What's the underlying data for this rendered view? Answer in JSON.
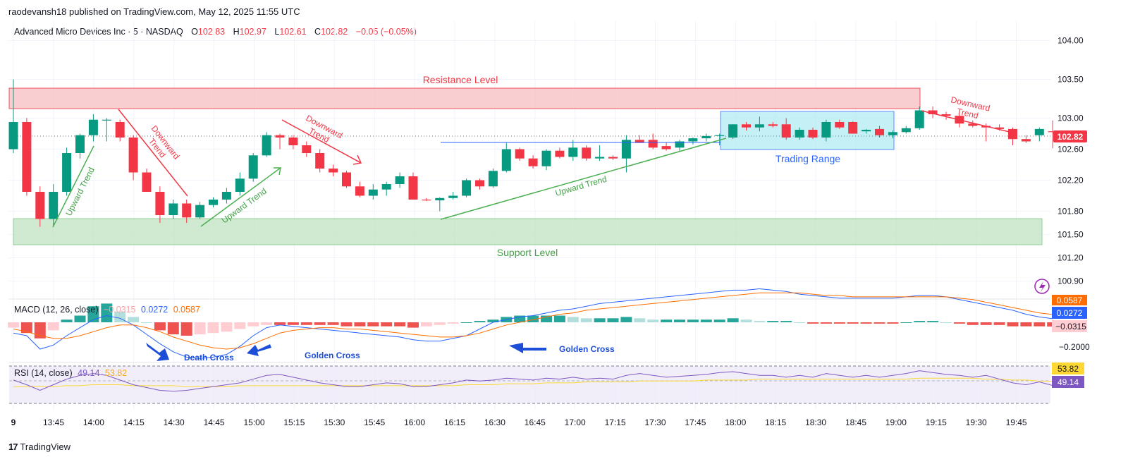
{
  "header": {
    "publisher": "raodevansh18 published on TradingView.com, May 12, 2025 11:55 UTC",
    "symbol": "Advanced Micro Devices Inc · 5 · NASDAQ",
    "o_label": "O",
    "o_value": "102.83",
    "h_label": "H",
    "h_value": "102.97",
    "l_label": "L",
    "l_value": "102.61",
    "c_label": "C",
    "c_value": "102.82",
    "change": "−0.05 (−0.05%)"
  },
  "price_axis": {
    "ticks": [
      "104.00",
      "103.50",
      "103.00",
      "102.60",
      "102.20",
      "101.80",
      "101.50",
      "101.20",
      "100.90"
    ],
    "last_price": "102.82"
  },
  "time_axis": {
    "ticks": [
      "9",
      "13:45",
      "14:00",
      "14:15",
      "14:30",
      "14:45",
      "15:00",
      "15:15",
      "15:30",
      "15:45",
      "16:00",
      "16:15",
      "16:30",
      "16:45",
      "17:00",
      "17:15",
      "17:30",
      "17:45",
      "18:00",
      "18:15",
      "18:30",
      "18:45",
      "19:00",
      "19:15",
      "19:30",
      "19:45"
    ]
  },
  "annotations": {
    "resistance": "Resistance Level",
    "support": "Support Level",
    "trading_range": "Trading Range",
    "upward_trend": "Upward Trend",
    "downward_trend": "Downward Trend",
    "death_cross": "Death Cross",
    "golden_cross": "Golden Cross"
  },
  "macd": {
    "label": "MACD (12, 26, close)",
    "hist_value": "−0.0315",
    "macd_value": "0.0272",
    "signal_value": "0.0587",
    "axis_tick": "−0.2000",
    "colors": {
      "macd": "#2962ff",
      "signal": "#ff6d00",
      "hist_pos": "#26a69a",
      "hist_neg": "#ef5350"
    }
  },
  "rsi": {
    "label": "RSI (14, close)",
    "rsi_value": "49.14",
    "ma_value": "53.82",
    "colors": {
      "rsi": "#7e57c2",
      "ma": "#fdd835"
    }
  },
  "footer": {
    "brand": "TradingView"
  },
  "chart_data": {
    "type": "candlestick",
    "interval": "5",
    "y_axis_range": [
      100.75,
      104.25
    ],
    "colors": {
      "up": "#089981",
      "down": "#f23645"
    },
    "candles": [
      {
        "o": 102.6,
        "h": 103.5,
        "l": 102.55,
        "c": 102.95
      },
      {
        "o": 102.95,
        "h": 103.0,
        "l": 102.0,
        "c": 102.05
      },
      {
        "o": 102.05,
        "h": 102.12,
        "l": 101.6,
        "c": 101.7
      },
      {
        "o": 101.7,
        "h": 102.15,
        "l": 101.62,
        "c": 102.05
      },
      {
        "o": 102.05,
        "h": 102.62,
        "l": 102.0,
        "c": 102.55
      },
      {
        "o": 102.55,
        "h": 102.8,
        "l": 102.48,
        "c": 102.78
      },
      {
        "o": 102.78,
        "h": 103.05,
        "l": 102.7,
        "c": 102.98
      },
      {
        "o": 102.98,
        "h": 103.0,
        "l": 102.7,
        "c": 102.98
      },
      {
        "o": 102.95,
        "h": 102.98,
        "l": 102.7,
        "c": 102.75
      },
      {
        "o": 102.75,
        "h": 102.78,
        "l": 102.2,
        "c": 102.3
      },
      {
        "o": 102.3,
        "h": 102.35,
        "l": 102.05,
        "c": 102.05
      },
      {
        "o": 102.05,
        "h": 102.12,
        "l": 101.65,
        "c": 101.75
      },
      {
        "o": 101.75,
        "h": 101.95,
        "l": 101.7,
        "c": 101.9
      },
      {
        "o": 101.9,
        "h": 101.95,
        "l": 101.65,
        "c": 101.72
      },
      {
        "o": 101.72,
        "h": 101.92,
        "l": 101.7,
        "c": 101.88
      },
      {
        "o": 101.88,
        "h": 101.98,
        "l": 101.85,
        "c": 101.95
      },
      {
        "o": 101.95,
        "h": 102.1,
        "l": 101.9,
        "c": 102.05
      },
      {
        "o": 102.05,
        "h": 102.3,
        "l": 102.0,
        "c": 102.22
      },
      {
        "o": 102.22,
        "h": 102.55,
        "l": 102.18,
        "c": 102.52
      },
      {
        "o": 102.52,
        "h": 102.82,
        "l": 102.5,
        "c": 102.78
      },
      {
        "o": 102.78,
        "h": 102.8,
        "l": 102.6,
        "c": 102.75
      },
      {
        "o": 102.75,
        "h": 102.78,
        "l": 102.6,
        "c": 102.65
      },
      {
        "o": 102.65,
        "h": 102.7,
        "l": 102.5,
        "c": 102.55
      },
      {
        "o": 102.55,
        "h": 102.6,
        "l": 102.3,
        "c": 102.35
      },
      {
        "o": 102.35,
        "h": 102.4,
        "l": 102.25,
        "c": 102.3
      },
      {
        "o": 102.3,
        "h": 102.32,
        "l": 102.1,
        "c": 102.12
      },
      {
        "o": 102.12,
        "h": 102.18,
        "l": 101.98,
        "c": 102.0
      },
      {
        "o": 102.0,
        "h": 102.15,
        "l": 101.95,
        "c": 102.08
      },
      {
        "o": 102.08,
        "h": 102.18,
        "l": 102.0,
        "c": 102.15
      },
      {
        "o": 102.15,
        "h": 102.3,
        "l": 102.1,
        "c": 102.25
      },
      {
        "o": 102.25,
        "h": 102.3,
        "l": 101.95,
        "c": 101.95
      },
      {
        "o": 101.95,
        "h": 101.97,
        "l": 101.93,
        "c": 101.94
      },
      {
        "o": 101.94,
        "h": 101.98,
        "l": 101.8,
        "c": 101.97
      },
      {
        "o": 101.97,
        "h": 102.05,
        "l": 101.95,
        "c": 102.0
      },
      {
        "o": 102.0,
        "h": 102.22,
        "l": 101.98,
        "c": 102.2
      },
      {
        "o": 102.2,
        "h": 102.22,
        "l": 102.08,
        "c": 102.12
      },
      {
        "o": 102.12,
        "h": 102.35,
        "l": 102.1,
        "c": 102.32
      },
      {
        "o": 102.32,
        "h": 102.68,
        "l": 102.3,
        "c": 102.6
      },
      {
        "o": 102.6,
        "h": 102.62,
        "l": 102.45,
        "c": 102.48
      },
      {
        "o": 102.48,
        "h": 102.52,
        "l": 102.35,
        "c": 102.38
      },
      {
        "o": 102.38,
        "h": 102.6,
        "l": 102.33,
        "c": 102.58
      },
      {
        "o": 102.58,
        "h": 102.62,
        "l": 102.48,
        "c": 102.5
      },
      {
        "o": 102.5,
        "h": 102.72,
        "l": 102.45,
        "c": 102.62
      },
      {
        "o": 102.62,
        "h": 102.65,
        "l": 102.45,
        "c": 102.48
      },
      {
        "o": 102.48,
        "h": 102.65,
        "l": 102.45,
        "c": 102.5
      },
      {
        "o": 102.5,
        "h": 102.52,
        "l": 102.46,
        "c": 102.48
      },
      {
        "o": 102.48,
        "h": 102.78,
        "l": 102.3,
        "c": 102.72
      },
      {
        "o": 102.72,
        "h": 102.78,
        "l": 102.68,
        "c": 102.68
      },
      {
        "o": 102.72,
        "h": 102.8,
        "l": 102.6,
        "c": 102.62
      },
      {
        "o": 102.64,
        "h": 102.68,
        "l": 102.58,
        "c": 102.6
      },
      {
        "o": 102.62,
        "h": 102.72,
        "l": 102.58,
        "c": 102.7
      },
      {
        "o": 102.7,
        "h": 102.75,
        "l": 102.66,
        "c": 102.74
      },
      {
        "o": 102.74,
        "h": 102.8,
        "l": 102.7,
        "c": 102.77
      },
      {
        "o": 102.77,
        "h": 102.8,
        "l": 102.65,
        "c": 102.78
      },
      {
        "o": 102.75,
        "h": 102.92,
        "l": 102.73,
        "c": 102.92
      },
      {
        "o": 102.92,
        "h": 102.95,
        "l": 102.84,
        "c": 102.88
      },
      {
        "o": 102.88,
        "h": 103.02,
        "l": 102.83,
        "c": 102.92
      },
      {
        "o": 102.92,
        "h": 102.95,
        "l": 102.88,
        "c": 102.9
      },
      {
        "o": 102.92,
        "h": 103.0,
        "l": 102.72,
        "c": 102.75
      },
      {
        "o": 102.75,
        "h": 102.88,
        "l": 102.72,
        "c": 102.85
      },
      {
        "o": 102.85,
        "h": 102.88,
        "l": 102.73,
        "c": 102.75
      },
      {
        "o": 102.75,
        "h": 102.98,
        "l": 102.7,
        "c": 102.95
      },
      {
        "o": 102.95,
        "h": 102.98,
        "l": 102.86,
        "c": 102.88
      },
      {
        "o": 102.95,
        "h": 102.96,
        "l": 102.8,
        "c": 102.8
      },
      {
        "o": 102.83,
        "h": 102.86,
        "l": 102.8,
        "c": 102.85
      },
      {
        "o": 102.86,
        "h": 102.9,
        "l": 102.75,
        "c": 102.78
      },
      {
        "o": 102.78,
        "h": 102.84,
        "l": 102.74,
        "c": 102.82
      },
      {
        "o": 102.82,
        "h": 102.9,
        "l": 102.8,
        "c": 102.87
      },
      {
        "o": 102.87,
        "h": 103.15,
        "l": 102.85,
        "c": 103.1
      },
      {
        "o": 103.1,
        "h": 103.15,
        "l": 103.0,
        "c": 103.05
      },
      {
        "o": 103.05,
        "h": 103.08,
        "l": 102.98,
        "c": 103.03
      },
      {
        "o": 103.03,
        "h": 103.05,
        "l": 102.88,
        "c": 102.93
      },
      {
        "o": 102.93,
        "h": 102.97,
        "l": 102.88,
        "c": 102.9
      },
      {
        "o": 102.9,
        "h": 102.93,
        "l": 102.7,
        "c": 102.88
      },
      {
        "o": 102.88,
        "h": 102.92,
        "l": 102.84,
        "c": 102.86
      },
      {
        "o": 102.86,
        "h": 102.88,
        "l": 102.65,
        "c": 102.73
      },
      {
        "o": 102.73,
        "h": 102.78,
        "l": 102.68,
        "c": 102.7
      },
      {
        "o": 102.78,
        "h": 102.88,
        "l": 102.7,
        "c": 102.86
      },
      {
        "o": 102.83,
        "h": 102.97,
        "l": 102.61,
        "c": 102.82
      }
    ],
    "macd_histogram": [
      -0.04,
      -0.08,
      -0.12,
      -0.06,
      0.02,
      0.05,
      0.12,
      0.14,
      0.08,
      0.04,
      0.0,
      -0.06,
      -0.09,
      -0.1,
      -0.09,
      -0.08,
      -0.07,
      -0.05,
      -0.03,
      -0.02,
      -0.02,
      -0.02,
      -0.02,
      -0.02,
      -0.02,
      -0.03,
      -0.03,
      -0.03,
      -0.03,
      -0.03,
      -0.04,
      -0.03,
      -0.02,
      -0.01,
      0.0,
      0.01,
      0.02,
      0.04,
      0.05,
      0.05,
      0.05,
      0.05,
      0.04,
      0.03,
      0.03,
      0.03,
      0.04,
      0.03,
      0.02,
      0.02,
      0.02,
      0.02,
      0.02,
      0.02,
      0.03,
      0.02,
      0.01,
      0.01,
      0.01,
      0.0,
      -0.01,
      -0.01,
      -0.01,
      -0.01,
      -0.01,
      -0.01,
      -0.01,
      0.0,
      0.01,
      0.01,
      0.0,
      -0.01,
      -0.02,
      -0.02,
      -0.02,
      -0.03,
      -0.03,
      -0.03,
      -0.0315
    ],
    "macd_line": [
      -0.08,
      -0.1,
      -0.2,
      -0.17,
      -0.1,
      -0.04,
      0.02,
      0.05,
      0.03,
      -0.02,
      -0.09,
      -0.16,
      -0.22,
      -0.26,
      -0.27,
      -0.26,
      -0.24,
      -0.18,
      -0.1,
      -0.04,
      -0.02,
      -0.03,
      -0.04,
      -0.05,
      -0.06,
      -0.07,
      -0.08,
      -0.09,
      -0.1,
      -0.11,
      -0.13,
      -0.14,
      -0.14,
      -0.12,
      -0.1,
      -0.05,
      0.0,
      0.02,
      0.04,
      0.05,
      0.07,
      0.09,
      0.1,
      0.12,
      0.14,
      0.15,
      0.16,
      0.17,
      0.18,
      0.19,
      0.2,
      0.21,
      0.22,
      0.23,
      0.24,
      0.24,
      0.25,
      0.24,
      0.23,
      0.21,
      0.2,
      0.19,
      0.18,
      0.18,
      0.18,
      0.18,
      0.18,
      0.19,
      0.2,
      0.2,
      0.19,
      0.17,
      0.15,
      0.13,
      0.11,
      0.09,
      0.06,
      0.04,
      0.0272
    ],
    "signal_line": [
      -0.05,
      -0.07,
      -0.1,
      -0.12,
      -0.12,
      -0.1,
      -0.07,
      -0.04,
      -0.02,
      -0.02,
      -0.04,
      -0.07,
      -0.11,
      -0.14,
      -0.17,
      -0.19,
      -0.2,
      -0.19,
      -0.16,
      -0.12,
      -0.08,
      -0.06,
      -0.05,
      -0.04,
      -0.04,
      -0.05,
      -0.05,
      -0.06,
      -0.07,
      -0.08,
      -0.09,
      -0.1,
      -0.11,
      -0.11,
      -0.1,
      -0.08,
      -0.05,
      -0.02,
      0.0,
      0.02,
      0.04,
      0.06,
      0.07,
      0.09,
      0.1,
      0.11,
      0.12,
      0.13,
      0.14,
      0.15,
      0.16,
      0.17,
      0.18,
      0.19,
      0.2,
      0.21,
      0.22,
      0.22,
      0.22,
      0.22,
      0.21,
      0.2,
      0.2,
      0.19,
      0.19,
      0.19,
      0.19,
      0.19,
      0.19,
      0.19,
      0.19,
      0.18,
      0.17,
      0.15,
      0.13,
      0.11,
      0.09,
      0.07,
      0.0587
    ],
    "rsi_line": [
      55,
      50,
      44,
      50,
      56,
      60,
      62,
      60,
      55,
      50,
      47,
      44,
      43,
      44,
      46,
      48,
      50,
      52,
      56,
      60,
      61,
      58,
      55,
      52,
      50,
      48,
      48,
      50,
      52,
      51,
      48,
      48,
      50,
      52,
      55,
      54,
      55,
      57,
      56,
      55,
      57,
      56,
      58,
      56,
      57,
      56,
      60,
      62,
      60,
      58,
      59,
      60,
      61,
      63,
      64,
      62,
      60,
      60,
      58,
      60,
      58,
      62,
      60,
      58,
      60,
      58,
      60,
      62,
      65,
      63,
      61,
      60,
      58,
      60,
      56,
      52,
      50,
      53,
      49.14
    ],
    "rsi_ma": [
      48,
      48,
      48,
      48,
      49,
      49,
      50,
      50,
      50,
      49,
      49,
      49,
      49,
      48,
      48,
      48,
      48,
      49,
      49,
      49,
      49,
      49,
      49,
      49,
      49,
      49,
      49,
      49,
      49,
      49,
      49,
      49,
      49,
      49,
      50,
      50,
      50,
      51,
      51,
      51,
      52,
      52,
      52,
      53,
      53,
      53,
      53,
      54,
      54,
      54,
      54,
      54,
      55,
      55,
      55,
      55,
      56,
      56,
      56,
      56,
      56,
      56,
      56,
      56,
      56,
      56,
      56,
      56,
      57,
      57,
      57,
      57,
      57,
      56,
      56,
      55,
      55,
      54,
      53.82
    ]
  }
}
